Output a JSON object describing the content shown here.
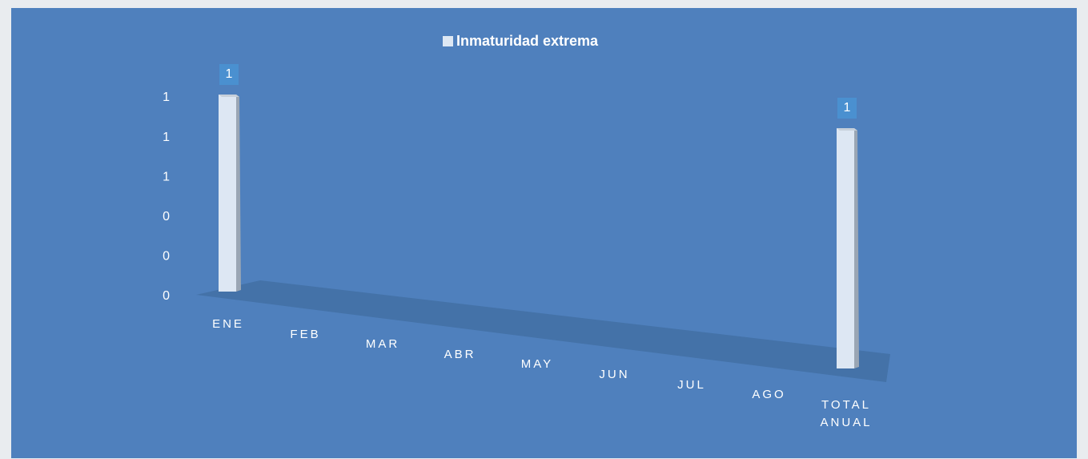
{
  "chart_data": {
    "type": "bar",
    "legend": "Inmaturidad extrema",
    "categories": [
      "ENE",
      "FEB",
      "MAR",
      "ABR",
      "MAY",
      "JUN",
      "JUL",
      "AGO",
      "TOTAL ANUAL"
    ],
    "series": [
      {
        "name": "Inmaturidad extrema",
        "color": "#dde7f3",
        "values": [
          1,
          null,
          null,
          null,
          null,
          null,
          null,
          null,
          1
        ]
      }
    ],
    "ylim": [
      0,
      1
    ],
    "yticks": [
      0,
      {
        "value": 0.2,
        "label": "0"
      },
      {
        "value": 0.4,
        "label": "0"
      },
      {
        "value": 0.6,
        "label": "1"
      },
      {
        "value": 0.8,
        "label": "1"
      },
      1
    ],
    "legend_position": "top",
    "grid": false
  }
}
